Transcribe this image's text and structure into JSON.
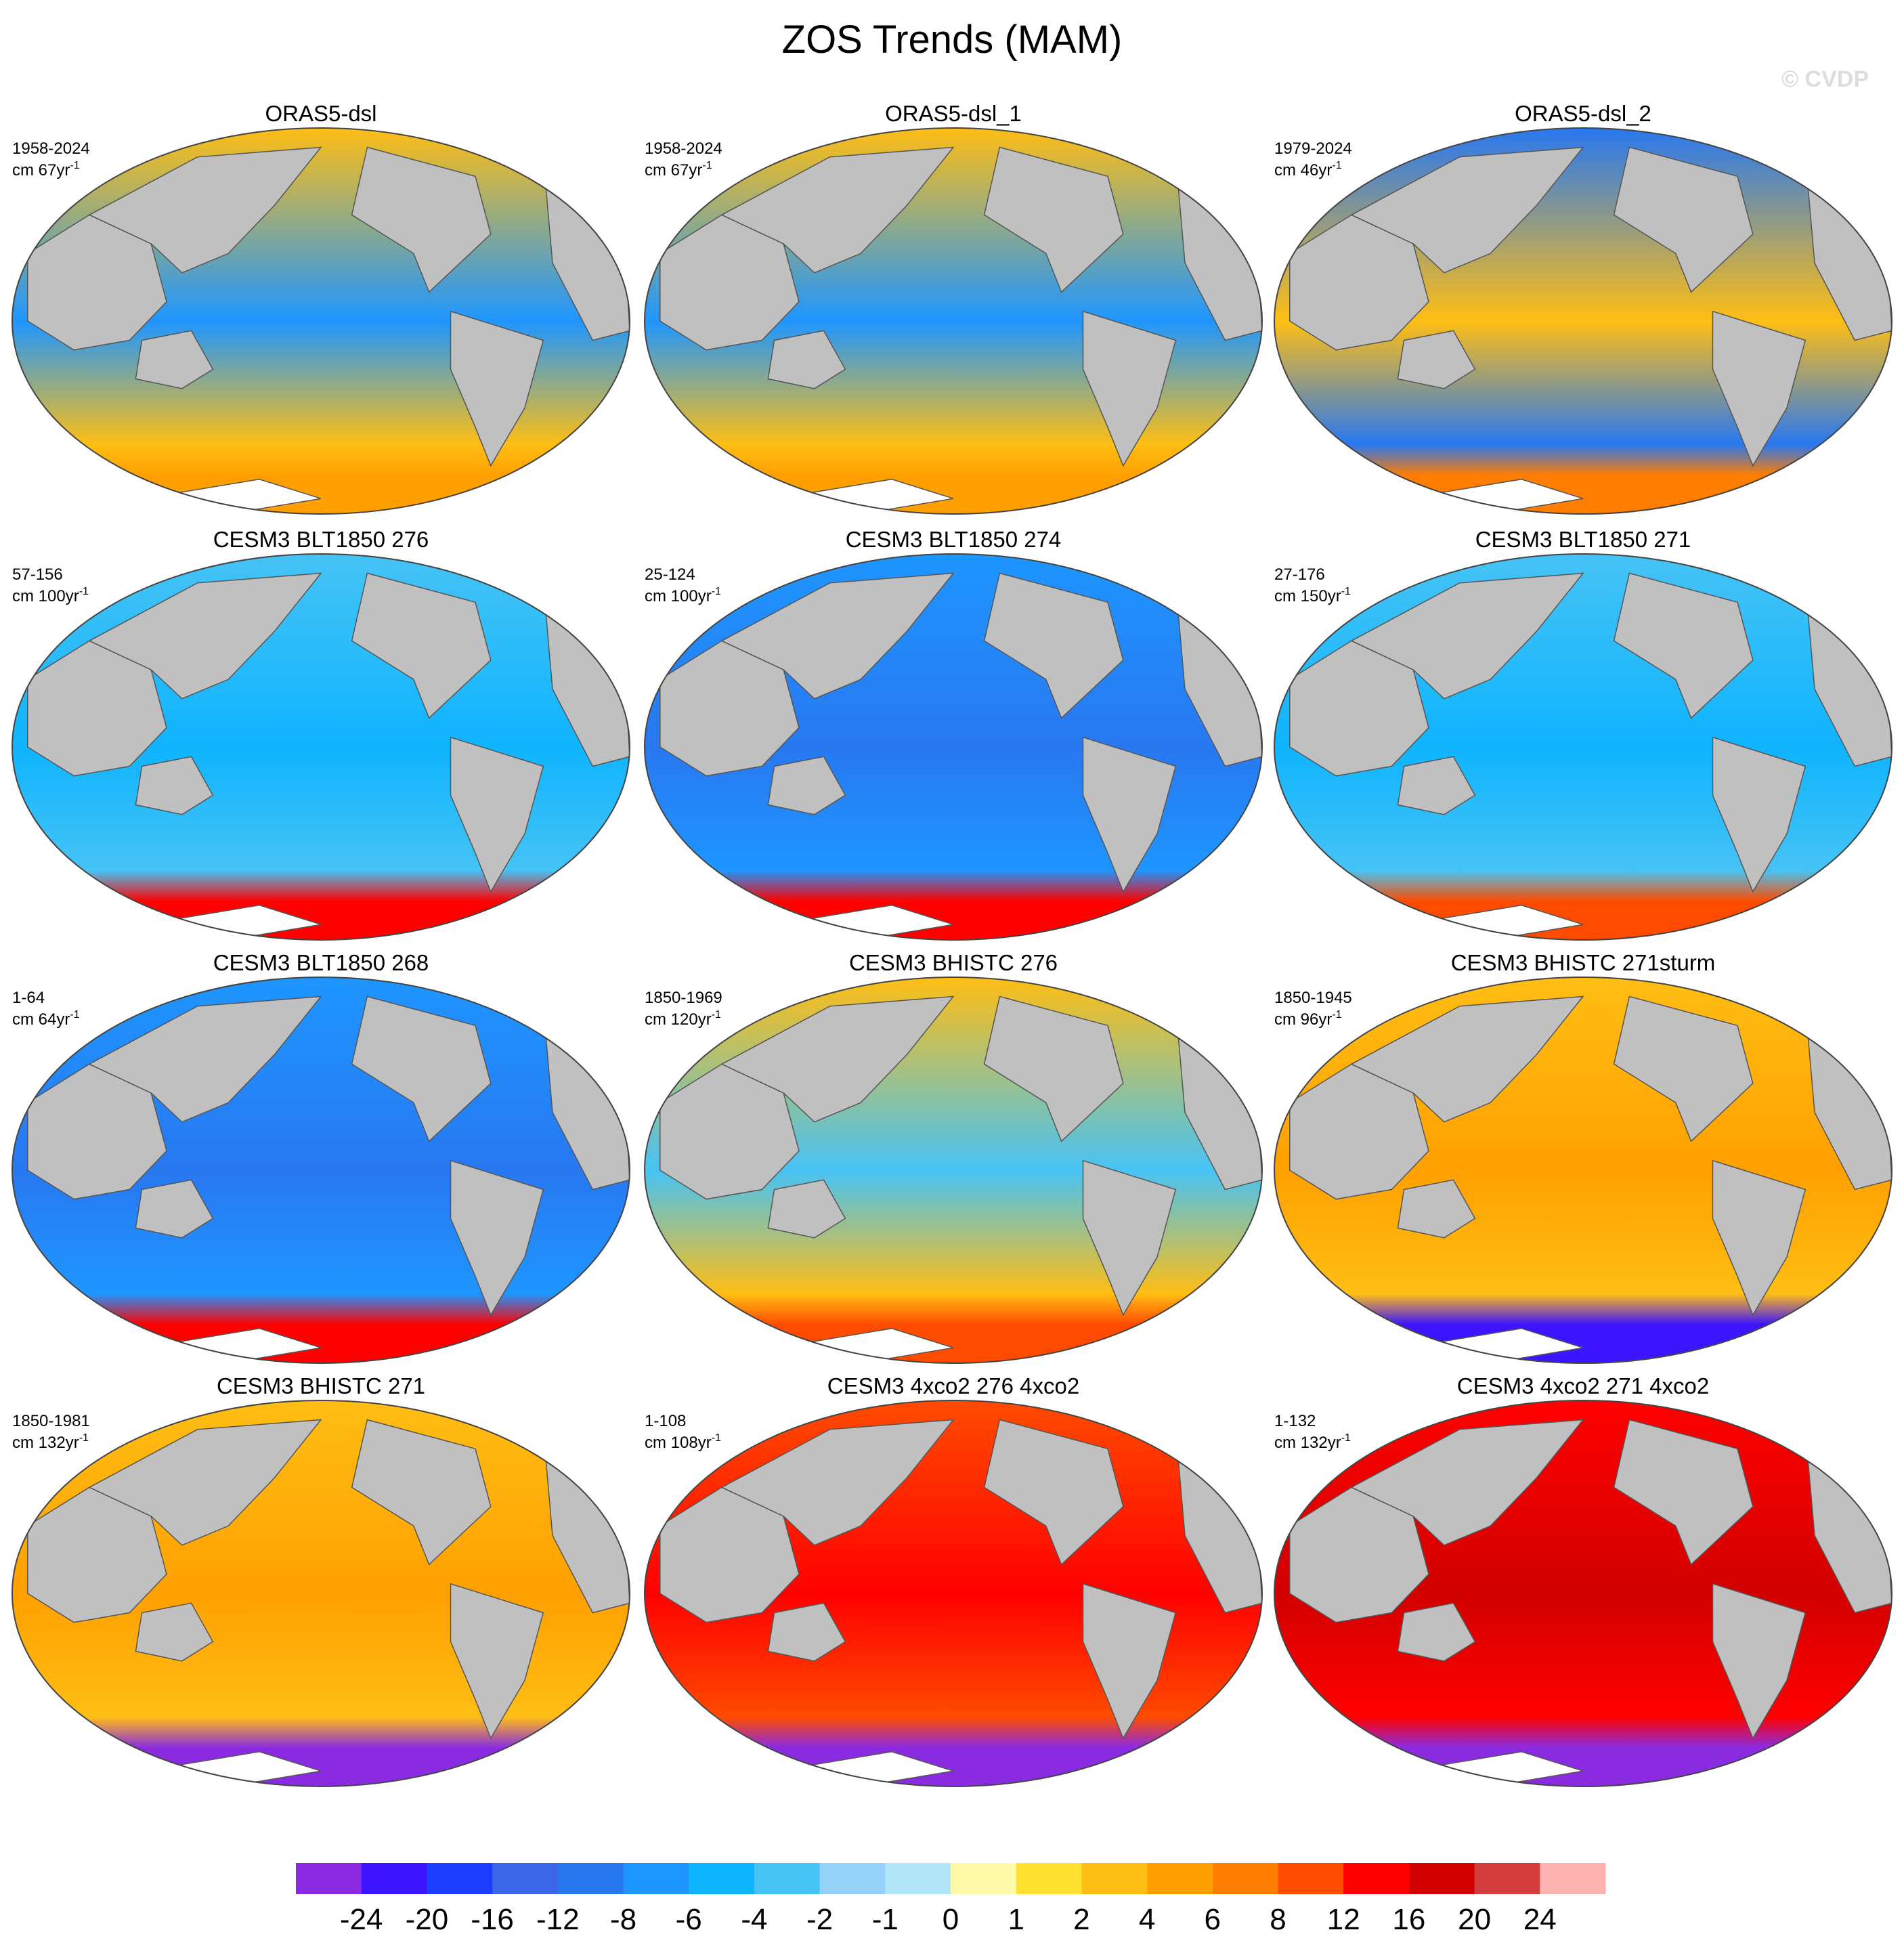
{
  "title": "ZOS Trends (MAM)",
  "watermark": "© CVDP",
  "panels": [
    {
      "title": "ORAS5-dsl",
      "period": "1958-2024",
      "units": "cm 67yr",
      "exponent": "-1"
    },
    {
      "title": "ORAS5-dsl_1",
      "period": "1958-2024",
      "units": "cm 67yr",
      "exponent": "-1"
    },
    {
      "title": "ORAS5-dsl_2",
      "period": "1979-2024",
      "units": "cm 46yr",
      "exponent": "-1"
    },
    {
      "title": "CESM3 BLT1850 276",
      "period": "57-156",
      "units": "cm 100yr",
      "exponent": "-1"
    },
    {
      "title": "CESM3 BLT1850 274",
      "period": "25-124",
      "units": "cm 100yr",
      "exponent": "-1"
    },
    {
      "title": "CESM3 BLT1850 271",
      "period": "27-176",
      "units": "cm 150yr",
      "exponent": "-1"
    },
    {
      "title": "CESM3 BLT1850 268",
      "period": "1-64",
      "units": "cm 64yr",
      "exponent": "-1"
    },
    {
      "title": "CESM3 BHISTC 276",
      "period": "1850-1969",
      "units": "cm 120yr",
      "exponent": "-1"
    },
    {
      "title": "CESM3 BHISTC 271sturm",
      "period": "1850-1945",
      "units": "cm 96yr",
      "exponent": "-1"
    },
    {
      "title": "CESM3 BHISTC 271",
      "period": "1850-1981",
      "units": "cm 132yr",
      "exponent": "-1"
    },
    {
      "title": "CESM3 4xco2 276 4xco2",
      "period": "1-108",
      "units": "cm 108yr",
      "exponent": "-1"
    },
    {
      "title": "CESM3 4xco2 271 4xco2",
      "period": "1-132",
      "units": "cm 132yr",
      "exponent": "-1"
    }
  ],
  "colorbar": {
    "colors": [
      "#8a2be2",
      "#3c14ff",
      "#1e3cff",
      "#3c64e6",
      "#2878f0",
      "#1e96ff",
      "#0fb4ff",
      "#46c3f5",
      "#96d2fa",
      "#b4e6fa",
      "#fffaaa",
      "#ffe132",
      "#ffbe14",
      "#ffa000",
      "#ff7d00",
      "#ff4b00",
      "#ff0000",
      "#d20000",
      "#d23c3c",
      "#ffb4b4"
    ],
    "levels": [
      -24,
      -20,
      -16,
      -12,
      -8,
      -6,
      -4,
      -2,
      -1,
      0,
      1,
      2,
      4,
      6,
      8,
      12,
      16,
      20,
      24
    ]
  }
}
